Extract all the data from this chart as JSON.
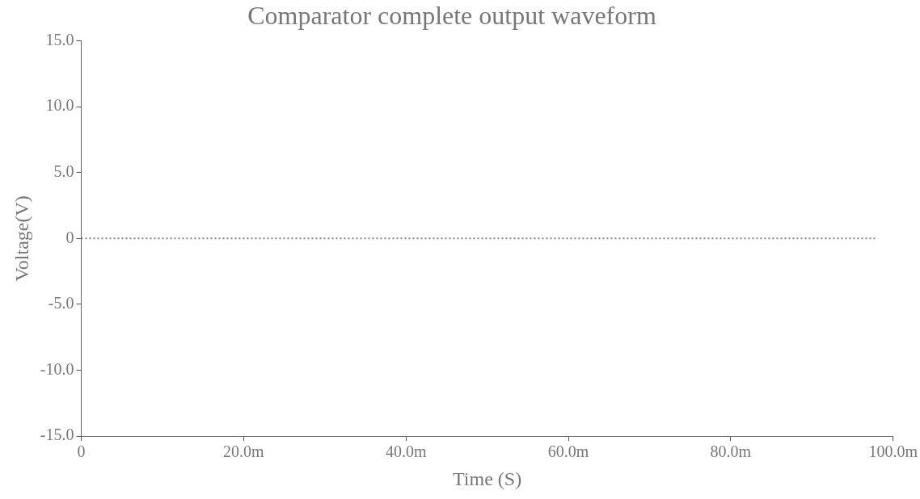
{
  "chart_data": {
    "type": "line",
    "title": "Comparator complete output waveform",
    "xlabel": "Time (S)",
    "ylabel": "Voltage(V)",
    "x": [
      0,
      98
    ],
    "series": [
      {
        "color": "#7f7f7f",
        "values": [
          0,
          0
        ]
      }
    ],
    "xlim": [
      0,
      100
    ],
    "xticks": [
      0,
      {
        "value": 20,
        "label": "20.0m"
      },
      {
        "value": 40,
        "label": "40.0m"
      },
      {
        "value": 60,
        "label": "60.0m"
      },
      {
        "value": 80,
        "label": "80.0m"
      },
      {
        "value": 100,
        "label": "100.0m"
      }
    ],
    "ylim": [
      -15,
      15
    ],
    "yticks": [
      {
        "value": 15,
        "label": "15.0"
      },
      {
        "value": 10,
        "label": "10.0"
      },
      {
        "value": 5,
        "label": "5.0"
      },
      0,
      {
        "value": -5,
        "label": "-5.0"
      },
      {
        "value": -10,
        "label": "-10.0"
      },
      {
        "value": -15,
        "label": "-15.0"
      }
    ],
    "grid": false,
    "legend": false,
    "marker": "none",
    "line_style": "dotted"
  }
}
